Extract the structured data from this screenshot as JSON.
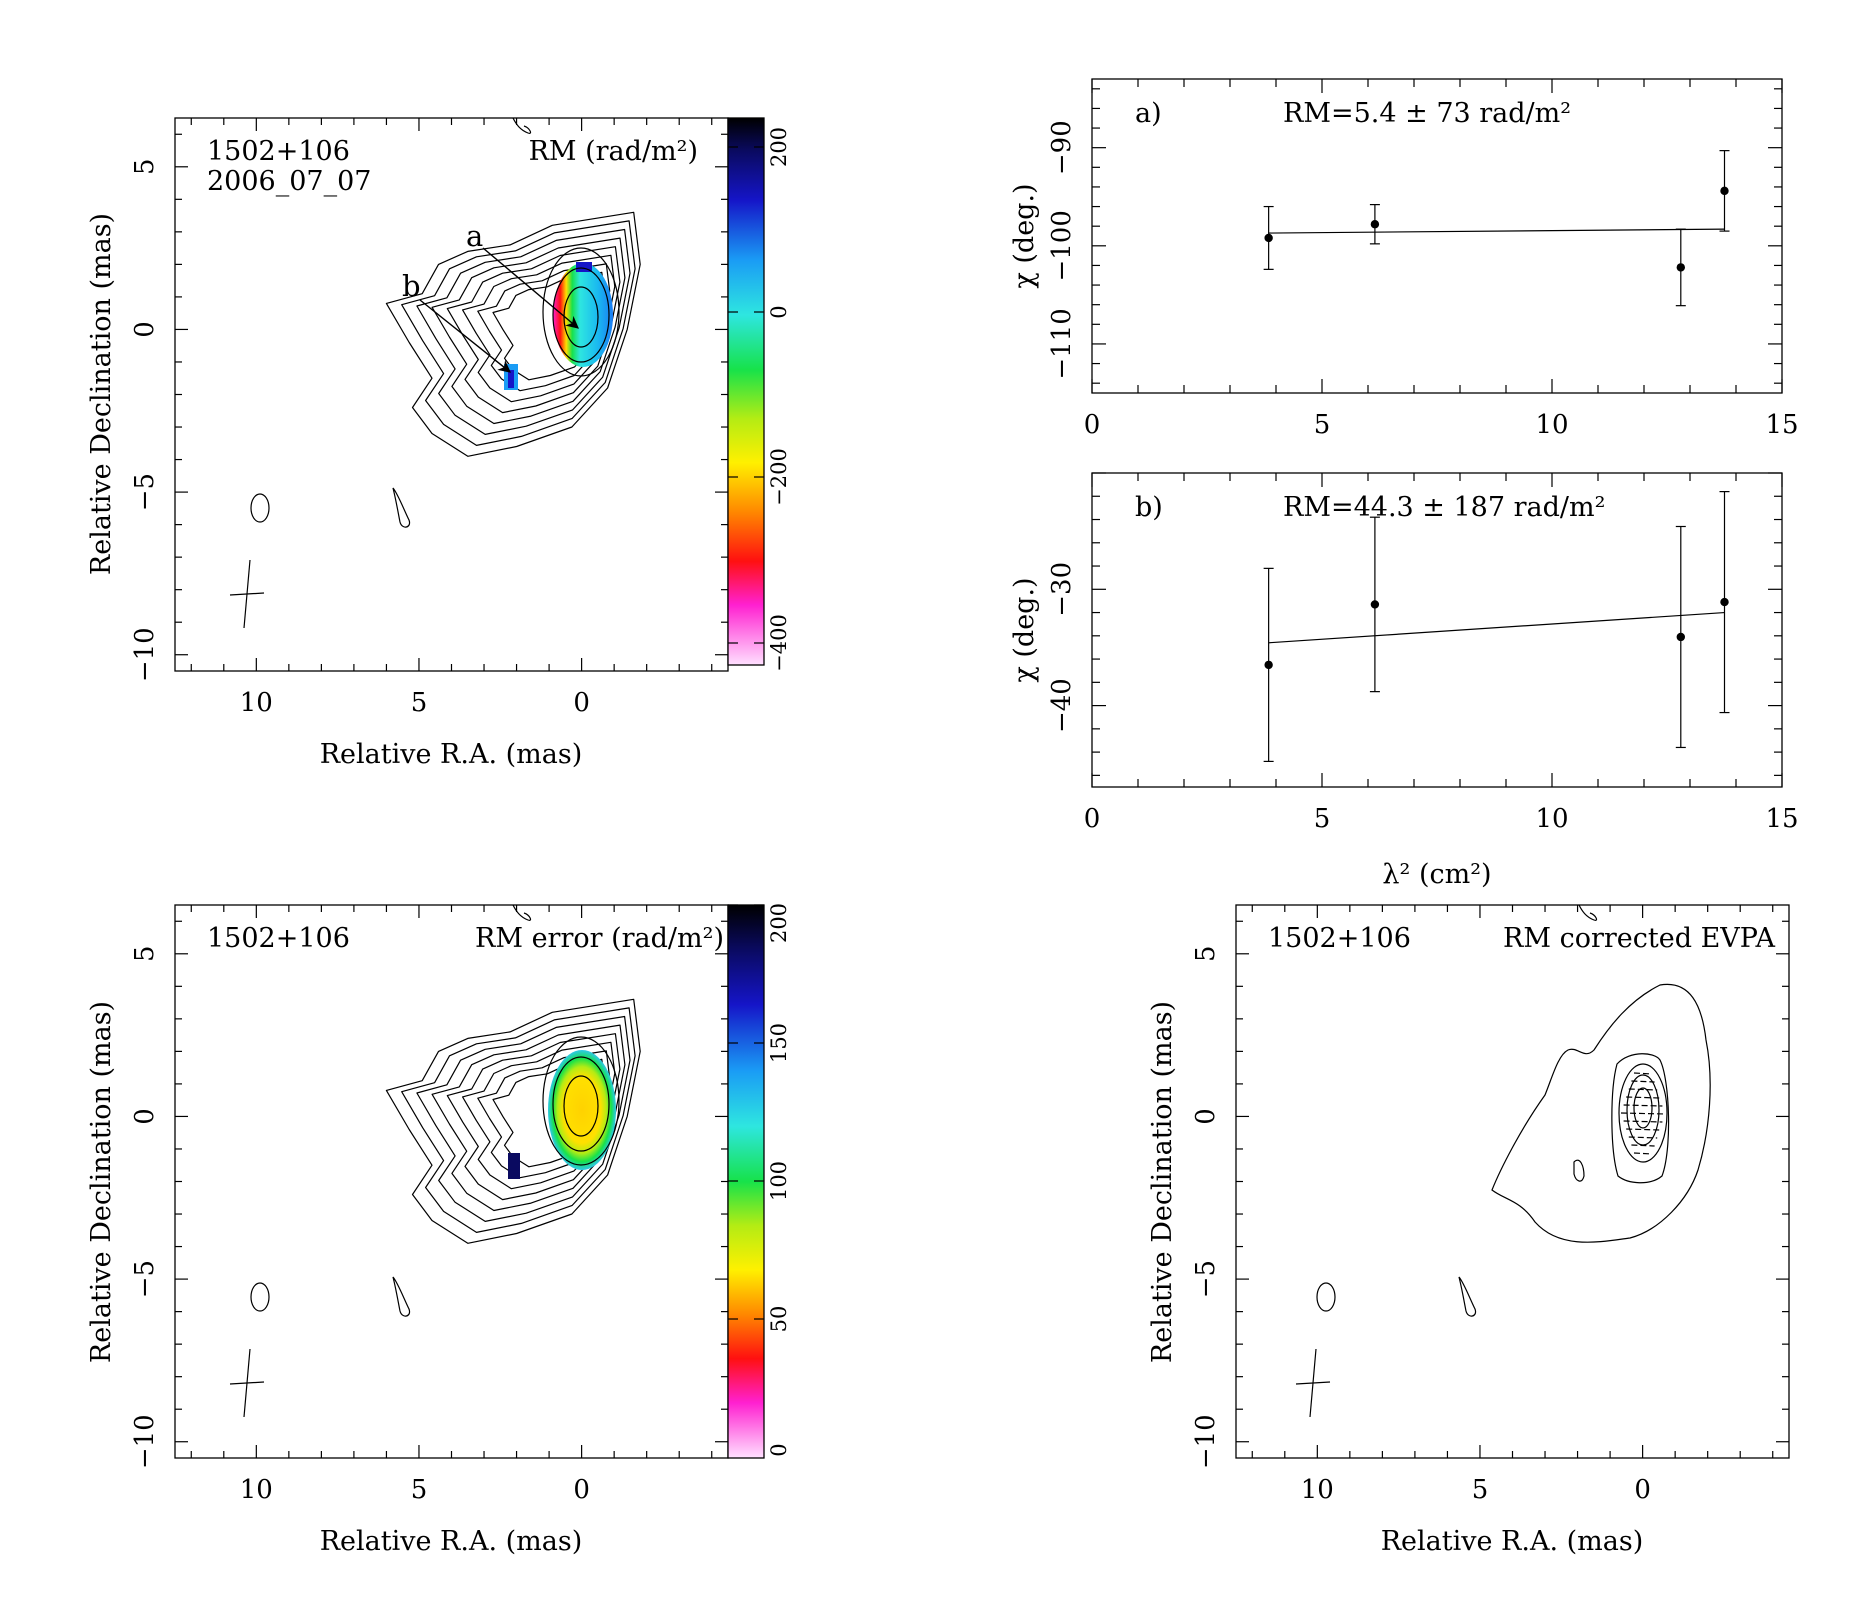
{
  "chart_data": [
    {
      "type": "heatmap",
      "source_label": "1502+106",
      "epoch_label": "2006_07_07",
      "map_label": "RM (rad/m²)",
      "xlabel": "Relative R.A. (mas)",
      "ylabel": "Relative Declination (mas)",
      "xlim": [
        12.5,
        -4.5
      ],
      "ylim": [
        -10.5,
        6.5
      ],
      "x_ticks": [
        "10",
        "5",
        "0"
      ],
      "y_ticks": [
        "5",
        "0",
        "−5",
        "−10"
      ],
      "colorbar": {
        "range": [
          -420,
          240
        ],
        "ticks": [
          "200",
          "0",
          "−200",
          "−400"
        ]
      },
      "annotations": [
        {
          "label": "a",
          "target": [
            0.7,
            0.1
          ]
        },
        {
          "label": "b",
          "target": [
            2.2,
            -1.5
          ]
        }
      ]
    },
    {
      "type": "scatter",
      "panel_label": "a)",
      "fit_label": "RM=5.4 ± 73 rad/m²",
      "ylabel": "χ (deg.)",
      "xlim": [
        0,
        15
      ],
      "ylim": [
        -115,
        -83
      ],
      "x_ticks": [
        "0",
        "5",
        "10",
        "15"
      ],
      "y_ticks": [
        "−90",
        "−100",
        "−110"
      ],
      "points": [
        {
          "x": 3.84,
          "y": -99.2,
          "err": 3.2
        },
        {
          "x": 6.15,
          "y": -97.8,
          "err": 2.0
        },
        {
          "x": 12.8,
          "y": -102.2,
          "err": 3.9
        },
        {
          "x": 13.75,
          "y": -94.4,
          "err": 4.1
        }
      ],
      "fit": {
        "x": [
          3.84,
          13.75
        ],
        "y": [
          -98.7,
          -98.3
        ]
      }
    },
    {
      "type": "scatter",
      "panel_label": "b)",
      "fit_label": "RM=44.3 ± 187 rad/m²",
      "ylabel": "χ (deg.)",
      "xlabel": "λ² (cm²)",
      "xlim": [
        0,
        15
      ],
      "ylim": [
        -47,
        -20
      ],
      "x_ticks": [
        "0",
        "5",
        "10",
        "15"
      ],
      "y_ticks": [
        "−30",
        "−40"
      ],
      "points": [
        {
          "x": 3.84,
          "y": -36.5,
          "err": 8.3
        },
        {
          "x": 6.15,
          "y": -31.3,
          "err": 7.5
        },
        {
          "x": 12.8,
          "y": -34.1,
          "err": 9.5
        },
        {
          "x": 13.75,
          "y": -31.1,
          "err": 9.5
        }
      ],
      "fit": {
        "x": [
          3.84,
          13.75
        ],
        "y": [
          -34.6,
          -32.0
        ]
      }
    },
    {
      "type": "heatmap",
      "source_label": "1502+106",
      "map_label": "RM error (rad/m²)",
      "xlabel": "Relative R.A. (mas)",
      "ylabel": "Relative Declination (mas)",
      "xlim": [
        12.5,
        -4.5
      ],
      "ylim": [
        -10.5,
        6.5
      ],
      "x_ticks": [
        "10",
        "5",
        "0"
      ],
      "y_ticks": [
        "5",
        "0",
        "−5",
        "−10"
      ],
      "colorbar": {
        "range": [
          0,
          200
        ],
        "ticks": [
          "200",
          "150",
          "100",
          "50",
          "0"
        ]
      }
    },
    {
      "type": "contour",
      "source_label": "1502+106",
      "map_label": "RM corrected EVPA",
      "xlabel": "Relative R.A. (mas)",
      "ylabel": "Relative Declination (mas)",
      "xlim": [
        12.5,
        -4.5
      ],
      "ylim": [
        -10.5,
        6.5
      ],
      "x_ticks": [
        "10",
        "5",
        "0"
      ],
      "y_ticks": [
        "5",
        "0",
        "−5",
        "−10"
      ]
    }
  ]
}
